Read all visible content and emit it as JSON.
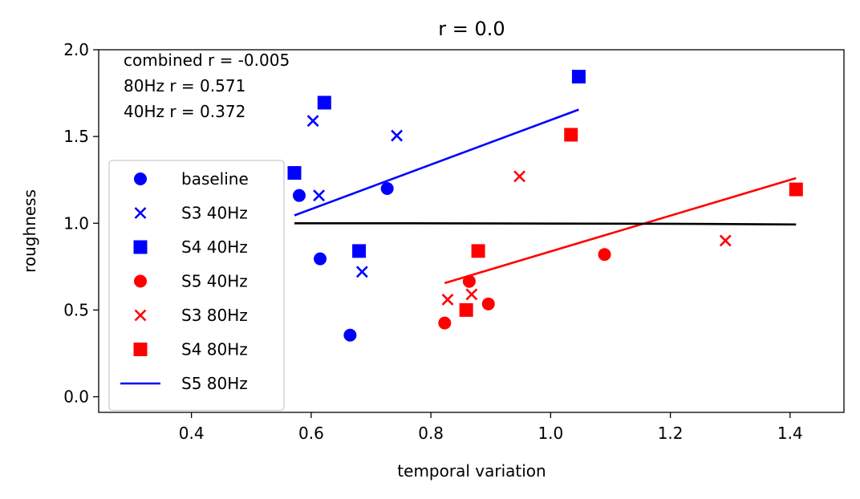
{
  "chart_data": {
    "type": "scatter",
    "title": "r = 0.0",
    "xlabel": "temporal variation",
    "ylabel": "roughness",
    "xlim": [
      0.245,
      1.49
    ],
    "ylim": [
      -0.09,
      2.0
    ],
    "xticks": [
      0.4,
      0.6,
      0.8,
      1.0,
      1.2,
      1.4
    ],
    "xtick_labels": [
      "0.4",
      "0.6",
      "0.8",
      "1.0",
      "1.2",
      "1.4"
    ],
    "yticks": [
      0.0,
      0.5,
      1.0,
      1.5,
      2.0
    ],
    "ytick_labels": [
      "0.0",
      "0.5",
      "1.0",
      "1.5",
      "2.0"
    ],
    "grid": false,
    "legend_position": "lower-left",
    "annotations": [
      "combined r = -0.005",
      "80Hz r = 0.571",
      "40Hz r = 0.372"
    ],
    "series": [
      {
        "name": "baseline",
        "marker": "circle",
        "color": "#0000ff",
        "points": [
          [
            0.58,
            1.16
          ],
          [
            0.727,
            1.2
          ],
          [
            0.615,
            0.795
          ],
          [
            0.665,
            0.355
          ]
        ]
      },
      {
        "name": "S3 40Hz",
        "marker": "x",
        "color": "#0000ff",
        "points": [
          [
            0.603,
            1.59
          ],
          [
            0.743,
            1.505
          ],
          [
            0.613,
            1.16
          ],
          [
            0.685,
            0.72
          ]
        ]
      },
      {
        "name": "S4 40Hz",
        "marker": "square",
        "color": "#0000ff",
        "points": [
          [
            0.572,
            1.29
          ],
          [
            0.622,
            1.695
          ],
          [
            0.68,
            0.84
          ],
          [
            1.047,
            1.845
          ]
        ]
      },
      {
        "name": "S5 40Hz",
        "marker": "circle",
        "color": "#ff0000",
        "points": [
          [
            0.823,
            0.425
          ],
          [
            0.864,
            0.665
          ],
          [
            0.896,
            0.535
          ],
          [
            1.09,
            0.82
          ]
        ]
      },
      {
        "name": "S3 80Hz",
        "marker": "x",
        "color": "#ff0000",
        "points": [
          [
            0.828,
            0.56
          ],
          [
            0.868,
            0.59
          ],
          [
            0.948,
            1.27
          ],
          [
            1.292,
            0.9
          ]
        ]
      },
      {
        "name": "S4 80Hz",
        "marker": "square",
        "color": "#ff0000",
        "points": [
          [
            0.859,
            0.5
          ],
          [
            0.879,
            0.84
          ],
          [
            1.034,
            1.51
          ],
          [
            1.41,
            1.195
          ]
        ]
      },
      {
        "name": "S5 80Hz",
        "marker": "line",
        "color": "#0000ff",
        "points": [
          [
            0.572,
            1.045
          ],
          [
            1.047,
            1.655
          ]
        ]
      }
    ],
    "fit_lines": [
      {
        "color": "#ff0000",
        "points": [
          [
            0.823,
            0.655
          ],
          [
            1.41,
            1.26
          ]
        ]
      },
      {
        "color": "#000000",
        "points": [
          [
            0.572,
            1.0
          ],
          [
            0.75,
            1.0
          ],
          [
            1.0,
            0.998
          ],
          [
            1.2,
            0.997
          ],
          [
            1.41,
            0.993
          ]
        ]
      }
    ]
  }
}
